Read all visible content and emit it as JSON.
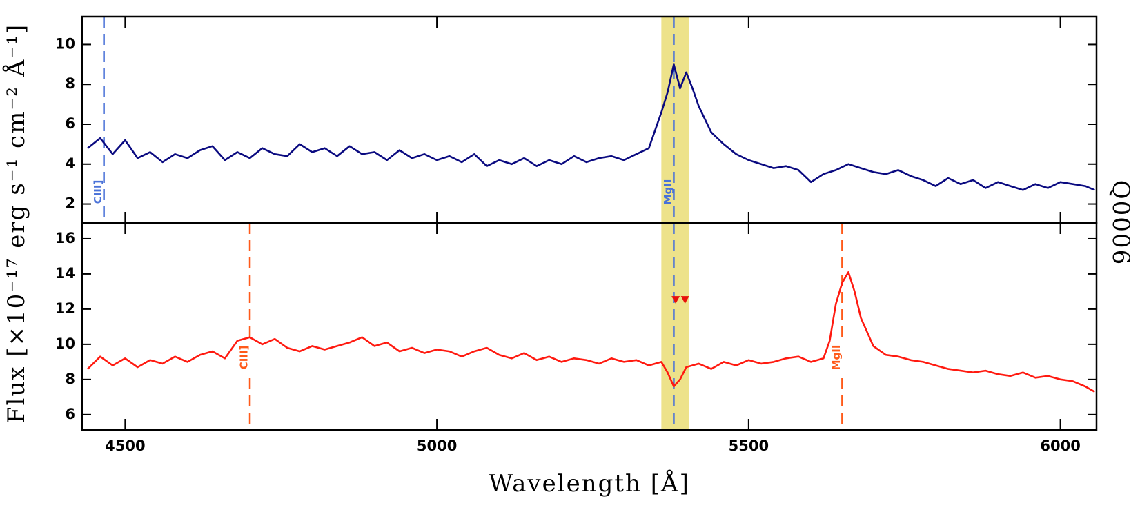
{
  "chart_data": [
    {
      "type": "line",
      "ylabel": "Flux [×10⁻¹⁷ erg s⁻¹ cm⁻² Å⁻¹]",
      "side_label": "Q0006",
      "xlim": [
        4431,
        6058
      ],
      "xticks": [
        4500,
        5000,
        5500,
        6000
      ],
      "ylim": [
        1.05,
        11.4
      ],
      "yticks": [
        2,
        4,
        6,
        8,
        10
      ],
      "color": "#0a0a80",
      "band": [
        5360,
        5405
      ],
      "band_color": "#ede28a",
      "lines": [
        {
          "label": "CIII]",
          "x": 4466,
          "color": "#4a72d8"
        },
        {
          "label": "MgII",
          "x": 5380,
          "color": "#4a72d8"
        }
      ],
      "x": [
        4440,
        4460,
        4480,
        4500,
        4520,
        4540,
        4560,
        4580,
        4600,
        4620,
        4640,
        4660,
        4680,
        4700,
        4720,
        4740,
        4760,
        4780,
        4800,
        4820,
        4840,
        4860,
        4880,
        4900,
        4920,
        4940,
        4960,
        4980,
        5000,
        5020,
        5040,
        5060,
        5080,
        5100,
        5120,
        5140,
        5160,
        5180,
        5200,
        5220,
        5240,
        5260,
        5280,
        5300,
        5320,
        5340,
        5360,
        5370,
        5380,
        5390,
        5400,
        5410,
        5420,
        5440,
        5460,
        5480,
        5500,
        5520,
        5540,
        5560,
        5580,
        5600,
        5620,
        5640,
        5660,
        5680,
        5700,
        5720,
        5740,
        5760,
        5780,
        5800,
        5820,
        5840,
        5860,
        5880,
        5900,
        5920,
        5940,
        5960,
        5980,
        6000,
        6020,
        6040,
        6055
      ],
      "values": [
        4.8,
        5.3,
        4.5,
        5.2,
        4.3,
        4.6,
        4.1,
        4.5,
        4.3,
        4.7,
        4.9,
        4.2,
        4.6,
        4.3,
        4.8,
        4.5,
        4.4,
        5.0,
        4.6,
        4.8,
        4.4,
        4.9,
        4.5,
        4.6,
        4.2,
        4.7,
        4.3,
        4.5,
        4.2,
        4.4,
        4.1,
        4.5,
        3.9,
        4.2,
        4.0,
        4.3,
        3.9,
        4.2,
        4.0,
        4.4,
        4.1,
        4.3,
        4.4,
        4.2,
        4.5,
        4.8,
        6.6,
        7.6,
        9.0,
        7.8,
        8.6,
        7.8,
        6.9,
        5.6,
        5.0,
        4.5,
        4.2,
        4.0,
        3.8,
        3.9,
        3.7,
        3.1,
        3.5,
        3.7,
        4.0,
        3.8,
        3.6,
        3.5,
        3.7,
        3.4,
        3.2,
        2.9,
        3.3,
        3.0,
        3.2,
        2.8,
        3.1,
        2.9,
        2.7,
        3.0,
        2.8,
        3.1,
        3.0,
        2.9,
        2.7
      ]
    },
    {
      "type": "line",
      "xlabel": "Wavelength [Å]",
      "xlim": [
        4431,
        6058
      ],
      "xticks": [
        4500,
        5000,
        5500,
        6000
      ],
      "ylim": [
        5.13,
        16.9
      ],
      "yticks": [
        6,
        8,
        10,
        12,
        14,
        16
      ],
      "color": "#ff1a10",
      "band": [
        5360,
        5405
      ],
      "band_color": "#ede28a",
      "lines": [
        {
          "label": "CIII]",
          "x": 4700,
          "color": "#ff5a1a"
        },
        {
          "x": 5380,
          "color": "#4a72d8"
        },
        {
          "label": "MgII",
          "x": 5650,
          "color": "#ff5a1a"
        }
      ],
      "markers": {
        "x": [
          5383,
          5398
        ],
        "y": [
          12.5,
          12.5
        ],
        "color": "#e8100a"
      },
      "x": [
        4440,
        4460,
        4480,
        4500,
        4520,
        4540,
        4560,
        4580,
        4600,
        4620,
        4640,
        4660,
        4680,
        4700,
        4720,
        4740,
        4760,
        4780,
        4800,
        4820,
        4840,
        4860,
        4880,
        4900,
        4920,
        4940,
        4960,
        4980,
        5000,
        5020,
        5040,
        5060,
        5080,
        5100,
        5120,
        5140,
        5160,
        5180,
        5200,
        5220,
        5240,
        5260,
        5280,
        5300,
        5320,
        5340,
        5360,
        5370,
        5380,
        5390,
        5400,
        5420,
        5440,
        5460,
        5480,
        5500,
        5520,
        5540,
        5560,
        5580,
        5600,
        5620,
        5630,
        5640,
        5650,
        5660,
        5670,
        5680,
        5700,
        5720,
        5740,
        5760,
        5780,
        5800,
        5820,
        5840,
        5860,
        5880,
        5900,
        5920,
        5940,
        5960,
        5980,
        6000,
        6020,
        6040,
        6055
      ],
      "values": [
        8.6,
        9.3,
        8.8,
        9.2,
        8.7,
        9.1,
        8.9,
        9.3,
        9.0,
        9.4,
        9.6,
        9.2,
        10.2,
        10.4,
        10.0,
        10.3,
        9.8,
        9.6,
        9.9,
        9.7,
        9.9,
        10.1,
        10.4,
        9.9,
        10.1,
        9.6,
        9.8,
        9.5,
        9.7,
        9.6,
        9.3,
        9.6,
        9.8,
        9.4,
        9.2,
        9.5,
        9.1,
        9.3,
        9.0,
        9.2,
        9.1,
        8.9,
        9.2,
        9.0,
        9.1,
        8.8,
        9.0,
        8.4,
        7.6,
        8.0,
        8.7,
        8.9,
        8.6,
        9.0,
        8.8,
        9.1,
        8.9,
        9.0,
        9.2,
        9.3,
        9.0,
        9.2,
        10.2,
        12.3,
        13.5,
        14.1,
        13.0,
        11.5,
        9.9,
        9.4,
        9.3,
        9.1,
        9.0,
        8.8,
        8.6,
        8.5,
        8.4,
        8.5,
        8.3,
        8.2,
        8.4,
        8.1,
        8.2,
        8.0,
        7.9,
        7.6,
        7.3
      ]
    }
  ]
}
